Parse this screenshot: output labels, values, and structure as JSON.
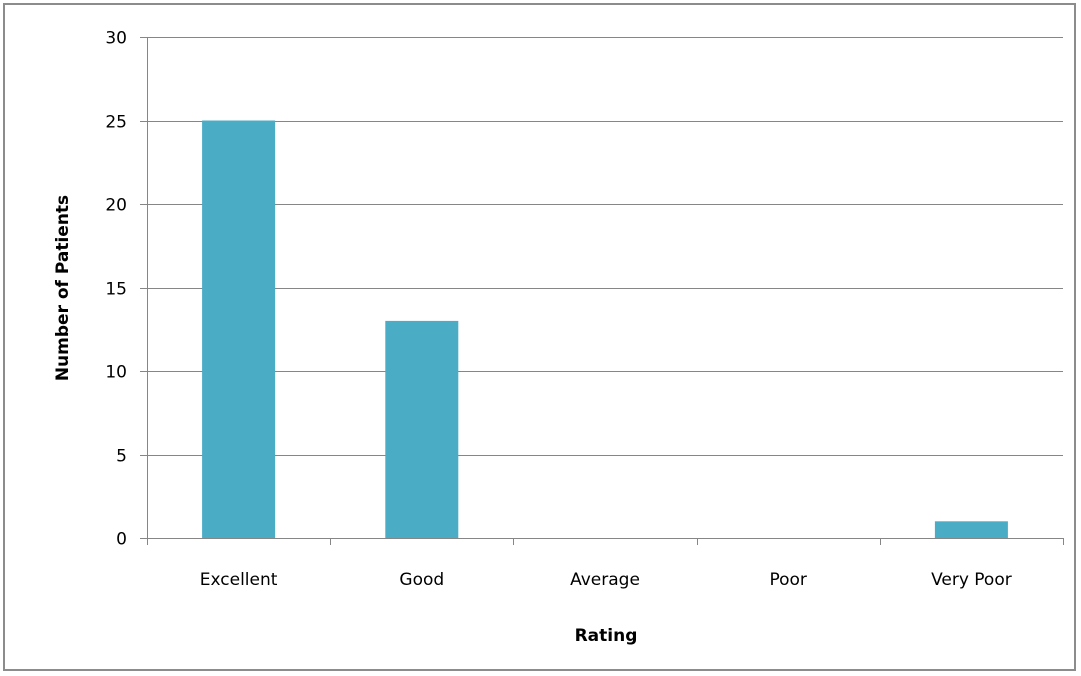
{
  "chart_data": {
    "type": "bar",
    "title": "",
    "xlabel": "Rating",
    "ylabel": "Number of Patients",
    "categories": [
      "Excellent",
      "Good",
      "Average",
      "Poor",
      "Very Poor"
    ],
    "values": [
      25,
      13,
      0,
      0,
      1
    ],
    "ylim": [
      0,
      30
    ],
    "yticks": [
      0,
      5,
      10,
      15,
      20,
      25,
      30
    ],
    "grid": true,
    "legend": "none",
    "bar_color": "#4BACC6",
    "gridline_color": "#868686"
  }
}
